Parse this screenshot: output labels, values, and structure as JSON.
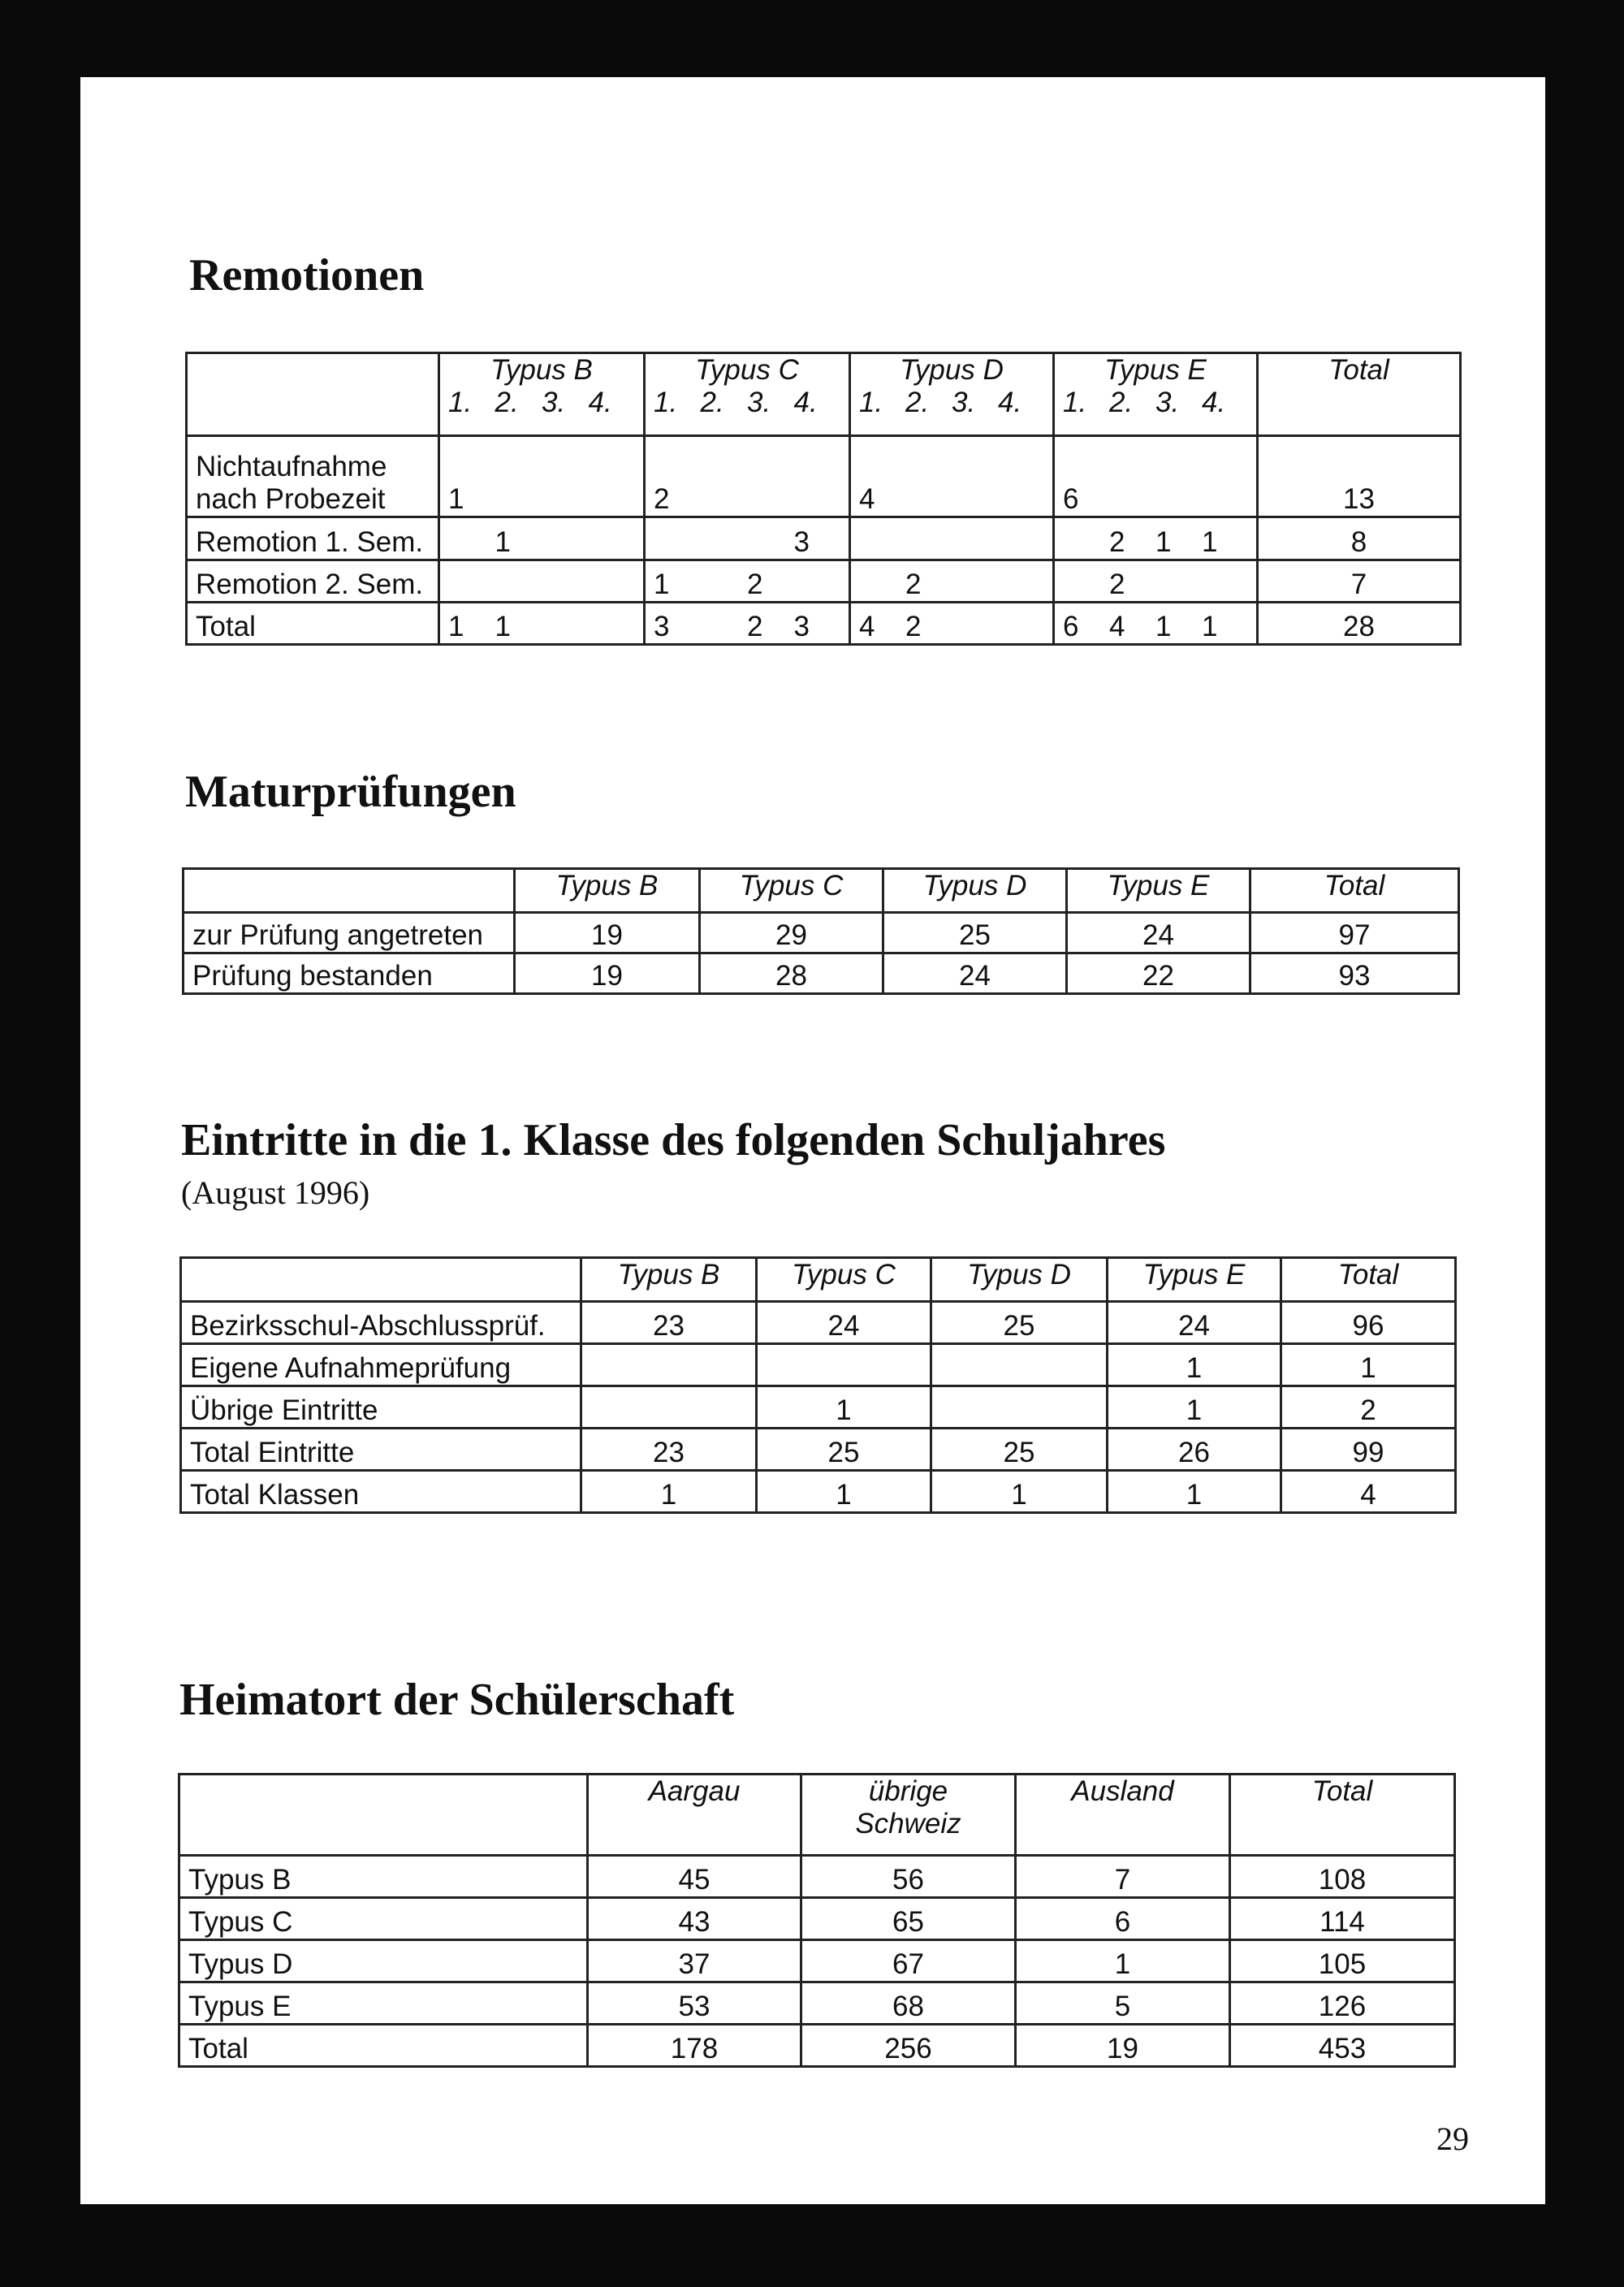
{
  "remotionen": {
    "title": "Remotionen",
    "columns": [
      "",
      "Typus B",
      "Typus C",
      "Typus D",
      "Typus E",
      "Total"
    ],
    "sub_columns": [
      "1.",
      "2.",
      "3.",
      "4."
    ],
    "rows": [
      {
        "label": "Nichtaufnahme\nnach Probezeit",
        "values": [
          "1",
          "",
          "",
          "",
          "2",
          "",
          "",
          "",
          "4",
          "",
          "",
          "",
          "6",
          "",
          "",
          ""
        ],
        "total": "13"
      },
      {
        "label": "Remotion 1. Sem.",
        "values": [
          "",
          "1",
          "",
          "",
          "",
          "",
          "",
          "3",
          "",
          "",
          "",
          "",
          "",
          "2",
          "1",
          "1"
        ],
        "total": "8"
      },
      {
        "label": "Remotion 2. Sem.",
        "values": [
          "",
          "",
          "",
          "",
          "1",
          "",
          "2",
          "",
          "",
          "2",
          "",
          "",
          "",
          "2",
          "",
          ""
        ],
        "total": "7"
      },
      {
        "label": "Total",
        "values": [
          "1",
          "1",
          "",
          "",
          "3",
          "",
          "2",
          "3",
          "4",
          "2",
          "",
          "",
          "6",
          "4",
          "1",
          "1"
        ],
        "total": "28"
      }
    ]
  },
  "maturpruefungen": {
    "title": "Maturprüfungen",
    "columns": [
      "",
      "Typus B",
      "Typus C",
      "Typus D",
      "Typus E",
      "Total"
    ],
    "rows": [
      {
        "label": "zur Prüfung angetreten",
        "values": [
          "19",
          "29",
          "25",
          "24",
          "97"
        ]
      },
      {
        "label": "Prüfung bestanden",
        "values": [
          "19",
          "28",
          "24",
          "22",
          "93"
        ]
      }
    ]
  },
  "eintritte": {
    "title": "Eintritte in die 1. Klasse des folgenden Schuljahres",
    "subtitle": "(August 1996)",
    "columns": [
      "",
      "Typus B",
      "Typus C",
      "Typus D",
      "Typus E",
      "Total"
    ],
    "rows": [
      {
        "label": "Bezirksschul-Abschlussprüf.",
        "values": [
          "23",
          "24",
          "25",
          "24",
          "96"
        ]
      },
      {
        "label": "Eigene Aufnahmeprüfung",
        "values": [
          "",
          "",
          "",
          "1",
          "1"
        ]
      },
      {
        "label": "Übrige Eintritte",
        "values": [
          "",
          "1",
          "",
          "1",
          "2"
        ]
      },
      {
        "label": "Total Eintritte",
        "values": [
          "23",
          "25",
          "25",
          "26",
          "99"
        ]
      },
      {
        "label": "Total Klassen",
        "values": [
          "1",
          "1",
          "1",
          "1",
          "4"
        ]
      }
    ]
  },
  "heimatort": {
    "title": "Heimatort der Schülerschaft",
    "columns": [
      "",
      "Aargau",
      "übrige\nSchweiz",
      "Ausland",
      "Total"
    ],
    "rows": [
      {
        "label": "Typus B",
        "values": [
          "45",
          "56",
          "7",
          "108"
        ]
      },
      {
        "label": "Typus C",
        "values": [
          "43",
          "65",
          "6",
          "114"
        ]
      },
      {
        "label": "Typus D",
        "values": [
          "37",
          "67",
          "1",
          "105"
        ]
      },
      {
        "label": "Typus E",
        "values": [
          "53",
          "68",
          "5",
          "126"
        ]
      },
      {
        "label": "Total",
        "values": [
          "178",
          "256",
          "19",
          "453"
        ]
      }
    ]
  },
  "page_number": "29"
}
